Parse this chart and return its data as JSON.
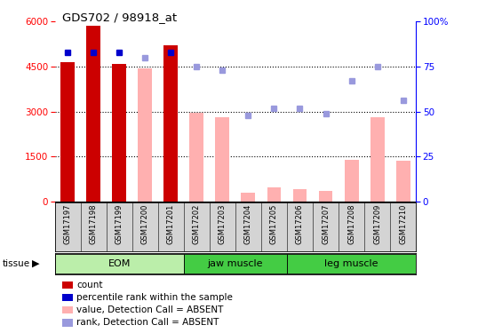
{
  "title": "GDS702 / 98918_at",
  "samples": [
    "GSM17197",
    "GSM17198",
    "GSM17199",
    "GSM17200",
    "GSM17201",
    "GSM17202",
    "GSM17203",
    "GSM17204",
    "GSM17205",
    "GSM17206",
    "GSM17207",
    "GSM17208",
    "GSM17209",
    "GSM17210"
  ],
  "count_values": [
    4650,
    5850,
    4580,
    null,
    5200,
    null,
    null,
    null,
    null,
    null,
    null,
    null,
    null,
    null
  ],
  "absent_value_bars": [
    null,
    null,
    null,
    4450,
    null,
    2950,
    2800,
    280,
    460,
    420,
    350,
    1380,
    2800,
    1350
  ],
  "rank_present": [
    83,
    83,
    83,
    null,
    83,
    null,
    null,
    null,
    null,
    null,
    null,
    null,
    null,
    null
  ],
  "rank_absent": [
    null,
    null,
    null,
    80,
    null,
    75,
    73,
    48,
    52,
    52,
    49,
    67,
    75,
    56
  ],
  "groups": [
    {
      "label": "EOM",
      "start": 0,
      "end": 5,
      "color": "#aae8aa"
    },
    {
      "label": "jaw muscle",
      "start": 5,
      "end": 9,
      "color": "#44dd44"
    },
    {
      "label": "leg muscle",
      "start": 9,
      "end": 14,
      "color": "#44dd44"
    }
  ],
  "ylim_left": [
    0,
    6000
  ],
  "ylim_right": [
    0,
    100
  ],
  "yticks_left": [
    0,
    1500,
    3000,
    4500,
    6000
  ],
  "yticks_right": [
    0,
    25,
    50,
    75,
    100
  ],
  "count_color": "#cc0000",
  "absent_bar_color": "#ffb0b0",
  "rank_present_color": "#0000cc",
  "rank_absent_color": "#9999dd"
}
